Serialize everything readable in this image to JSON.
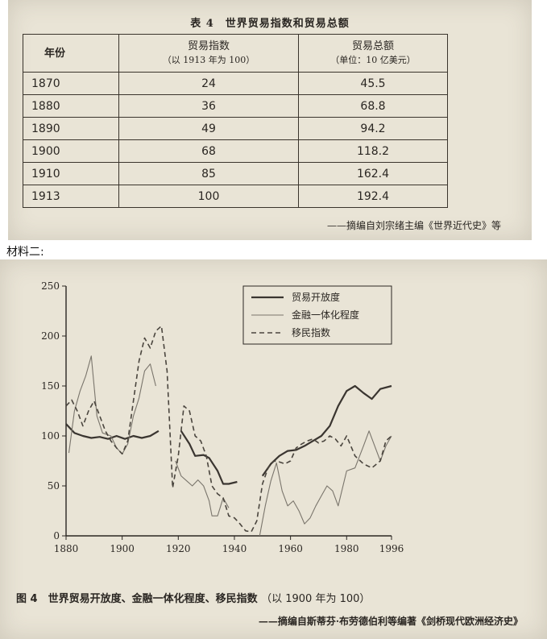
{
  "table": {
    "caption": "表 4　世界贸易指数和贸易总额",
    "headers": {
      "year": "年份",
      "index": "贸易指数",
      "index_note": "（以 1913 年为 100）",
      "total": "贸易总额",
      "total_note": "（单位：10 亿美元）"
    },
    "rows": [
      {
        "year": "1870",
        "index": "24",
        "total": "45.5"
      },
      {
        "year": "1880",
        "index": "36",
        "total": "68.8"
      },
      {
        "year": "1890",
        "index": "49",
        "total": "94.2"
      },
      {
        "year": "1900",
        "index": "68",
        "total": "118.2"
      },
      {
        "year": "1910",
        "index": "85",
        "total": "162.4"
      },
      {
        "year": "1913",
        "index": "100",
        "total": "192.4"
      }
    ],
    "source": "——摘编自刘宗绪主编《世界近代史》等"
  },
  "material_label": "材料二:",
  "figure": {
    "caption": "图 4　世界贸易开放度、金融一体化程度、移民指数",
    "caption_note": "（以 1900 年为 100）",
    "source": "——摘编自斯蒂芬·布劳德伯利等编著《剑桥现代欧洲经济史》"
  },
  "chart_data": {
    "type": "line",
    "title": "",
    "xlabel": "",
    "ylabel": "",
    "xlim": [
      1880,
      1996
    ],
    "ylim": [
      0,
      250
    ],
    "x_ticks": [
      1880,
      1900,
      1920,
      1940,
      1960,
      1980,
      1996
    ],
    "y_ticks": [
      0,
      50,
      100,
      150,
      200,
      250
    ],
    "legend_position": "top-right",
    "colors": {
      "trade": "#3a3530",
      "finance": "#7a756c",
      "migration": "#4a453e"
    },
    "series": [
      {
        "name": "贸易开放度",
        "style": "solid-thick",
        "segments": [
          [
            [
              1880,
              112
            ],
            [
              1883,
              103
            ],
            [
              1886,
              100
            ],
            [
              1889,
              98
            ],
            [
              1892,
              99
            ],
            [
              1895,
              97
            ],
            [
              1898,
              100
            ],
            [
              1901,
              97
            ],
            [
              1904,
              100
            ],
            [
              1907,
              98
            ],
            [
              1910,
              100
            ],
            [
              1913,
              105
            ]
          ],
          [
            [
              1921,
              105
            ],
            [
              1924,
              92
            ],
            [
              1926,
              80
            ],
            [
              1929,
              81
            ],
            [
              1931,
              78
            ],
            [
              1934,
              65
            ],
            [
              1936,
              52
            ],
            [
              1938,
              52
            ],
            [
              1941,
              54
            ]
          ],
          [
            [
              1950,
              60
            ],
            [
              1953,
              72
            ],
            [
              1956,
              80
            ],
            [
              1959,
              85
            ],
            [
              1962,
              86
            ],
            [
              1965,
              90
            ],
            [
              1968,
              95
            ],
            [
              1971,
              100
            ],
            [
              1974,
              110
            ],
            [
              1977,
              130
            ],
            [
              1980,
              145
            ],
            [
              1983,
              150
            ],
            [
              1986,
              143
            ],
            [
              1989,
              137
            ],
            [
              1992,
              147
            ],
            [
              1996,
              150
            ]
          ]
        ]
      },
      {
        "name": "金融一体化程度",
        "style": "solid-thin",
        "segments": [
          [
            [
              1881,
              83
            ],
            [
              1883,
              125
            ],
            [
              1885,
              145
            ],
            [
              1887,
              160
            ],
            [
              1889,
              180
            ],
            [
              1891,
              120
            ],
            [
              1893,
              103
            ],
            [
              1896,
              100
            ],
            [
              1898,
              88
            ],
            [
              1900,
              82
            ],
            [
              1902,
              92
            ],
            [
              1904,
              120
            ],
            [
              1906,
              138
            ],
            [
              1908,
              165
            ],
            [
              1910,
              172
            ],
            [
              1912,
              150
            ]
          ],
          [
            [
              1919,
              75
            ],
            [
              1921,
              60
            ],
            [
              1923,
              55
            ],
            [
              1925,
              50
            ],
            [
              1927,
              56
            ],
            [
              1929,
              50
            ],
            [
              1931,
              35
            ],
            [
              1932,
              20
            ],
            [
              1934,
              20
            ],
            [
              1936,
              38
            ],
            [
              1938,
              28
            ]
          ],
          [
            [
              1949,
              0
            ],
            [
              1951,
              30
            ],
            [
              1953,
              55
            ],
            [
              1955,
              73
            ],
            [
              1957,
              45
            ],
            [
              1959,
              30
            ],
            [
              1961,
              35
            ],
            [
              1963,
              25
            ],
            [
              1965,
              12
            ],
            [
              1967,
              18
            ],
            [
              1969,
              30
            ],
            [
              1971,
              40
            ],
            [
              1973,
              50
            ],
            [
              1975,
              45
            ],
            [
              1977,
              30
            ],
            [
              1980,
              65
            ],
            [
              1983,
              68
            ],
            [
              1986,
              90
            ],
            [
              1988,
              105
            ],
            [
              1990,
              90
            ],
            [
              1992,
              75
            ],
            [
              1994,
              90
            ],
            [
              1996,
              100
            ]
          ]
        ]
      },
      {
        "name": "移民指数",
        "style": "dashed",
        "segments": [
          [
            [
              1880,
              130
            ],
            [
              1882,
              136
            ],
            [
              1884,
              125
            ],
            [
              1886,
              110
            ],
            [
              1888,
              125
            ],
            [
              1890,
              135
            ],
            [
              1892,
              120
            ],
            [
              1894,
              105
            ],
            [
              1896,
              95
            ],
            [
              1898,
              88
            ],
            [
              1900,
              82
            ],
            [
              1902,
              95
            ],
            [
              1904,
              135
            ],
            [
              1906,
              175
            ],
            [
              1908,
              198
            ],
            [
              1910,
              188
            ],
            [
              1912,
              205
            ],
            [
              1914,
              210
            ],
            [
              1916,
              165
            ],
            [
              1918,
              48
            ],
            [
              1920,
              80
            ],
            [
              1922,
              130
            ],
            [
              1924,
              125
            ],
            [
              1926,
              100
            ],
            [
              1928,
              95
            ],
            [
              1930,
              80
            ],
            [
              1932,
              50
            ],
            [
              1934,
              42
            ],
            [
              1936,
              38
            ],
            [
              1938,
              20
            ],
            [
              1940,
              18
            ],
            [
              1942,
              12
            ],
            [
              1944,
              5
            ],
            [
              1946,
              4
            ],
            [
              1948,
              15
            ],
            [
              1950,
              52
            ],
            [
              1952,
              68
            ],
            [
              1954,
              75
            ],
            [
              1956,
              74
            ],
            [
              1958,
              72
            ],
            [
              1960,
              75
            ],
            [
              1962,
              88
            ],
            [
              1964,
              92
            ],
            [
              1966,
              95
            ],
            [
              1968,
              97
            ],
            [
              1970,
              93
            ],
            [
              1972,
              95
            ],
            [
              1974,
              100
            ],
            [
              1976,
              97
            ],
            [
              1978,
              90
            ],
            [
              1980,
              100
            ],
            [
              1983,
              80
            ],
            [
              1986,
              72
            ],
            [
              1989,
              68
            ],
            [
              1992,
              75
            ],
            [
              1994,
              95
            ],
            [
              1996,
              100
            ]
          ]
        ]
      }
    ]
  }
}
